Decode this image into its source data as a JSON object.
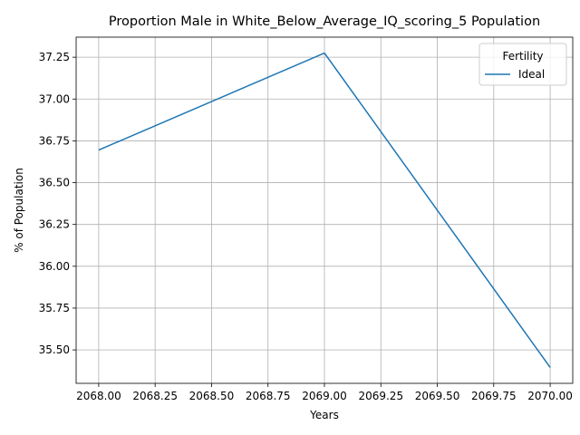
{
  "chart_data": {
    "type": "line",
    "title": "Proportion Male in White_Below_Average_IQ_scoring_5 Population",
    "xlabel": "Years",
    "ylabel": "% of Population",
    "xlim": [
      2067.9,
      2070.1
    ],
    "ylim": [
      35.3,
      37.37
    ],
    "grid": true,
    "legend": {
      "title": "Fertility",
      "placement": "top-right"
    },
    "x_ticks": [
      2068.0,
      2068.25,
      2068.5,
      2068.75,
      2069.0,
      2069.25,
      2069.5,
      2069.75,
      2070.0
    ],
    "x_tick_labels": [
      "2068.00",
      "2068.25",
      "2068.50",
      "2068.75",
      "2069.00",
      "2069.25",
      "2069.50",
      "2069.75",
      "2070.00"
    ],
    "y_ticks": [
      35.5,
      35.75,
      36.0,
      36.25,
      36.5,
      36.75,
      37.0,
      37.25
    ],
    "y_tick_labels": [
      "35.50",
      "35.75",
      "36.00",
      "36.25",
      "36.50",
      "36.75",
      "37.00",
      "37.25"
    ],
    "series": [
      {
        "name": "Ideal",
        "color": "#1f77b4",
        "x": [
          2068,
          2069,
          2070
        ],
        "y": [
          36.695,
          37.275,
          35.395
        ]
      }
    ]
  }
}
